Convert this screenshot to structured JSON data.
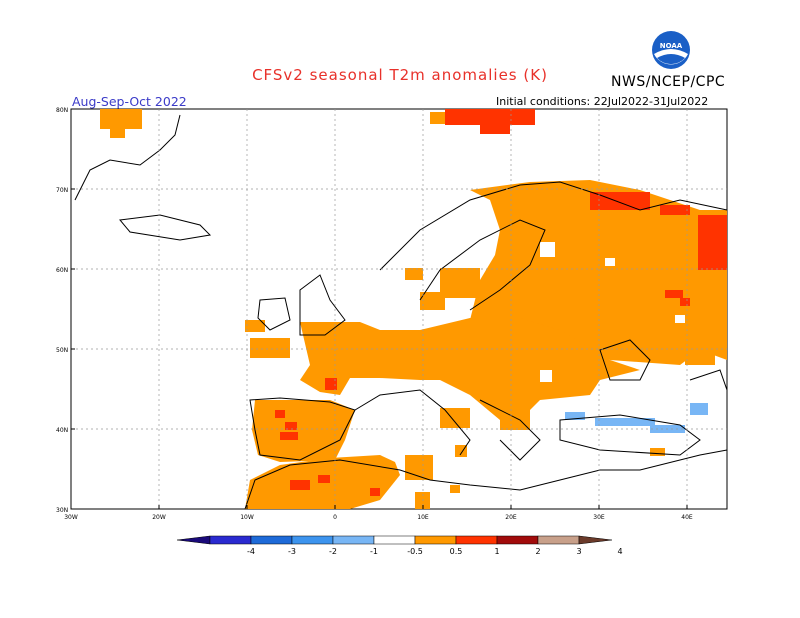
{
  "title": "CFSv2 seasonal T2m anomalies (K)",
  "agency": "NWS/NCEP/CPC",
  "logo_text": "NOAA",
  "period": "Aug-Sep-Oct 2022",
  "initial_conditions": "Initial conditions: 22Jul2022-31Jul2022",
  "lat_labels": [
    "80N",
    "70N",
    "60N",
    "50N",
    "40N",
    "30N"
  ],
  "lon_labels": [
    "30W",
    "20W",
    "10W",
    "0",
    "10E",
    "20E",
    "30E",
    "40E"
  ],
  "colorbar": {
    "labels": [
      "-4",
      "-3",
      "-2",
      "-1",
      "-0.5",
      "0.5",
      "1",
      "2",
      "3",
      "4"
    ],
    "colors": [
      "#1a0a7a",
      "#2a2ad0",
      "#1e6ad8",
      "#3d94ee",
      "#78b6f5",
      "#ffffff",
      "#ff9900",
      "#ff3300",
      "#a10b0b",
      "#c8a08a",
      "#6b3a2a"
    ]
  },
  "colors": {
    "positive_05_1": "#ff9900",
    "positive_1_2": "#ff3300",
    "negative_05_1": "#78b6f5",
    "title_red": "#e8312a",
    "period_blue": "#3b3bc8"
  }
}
